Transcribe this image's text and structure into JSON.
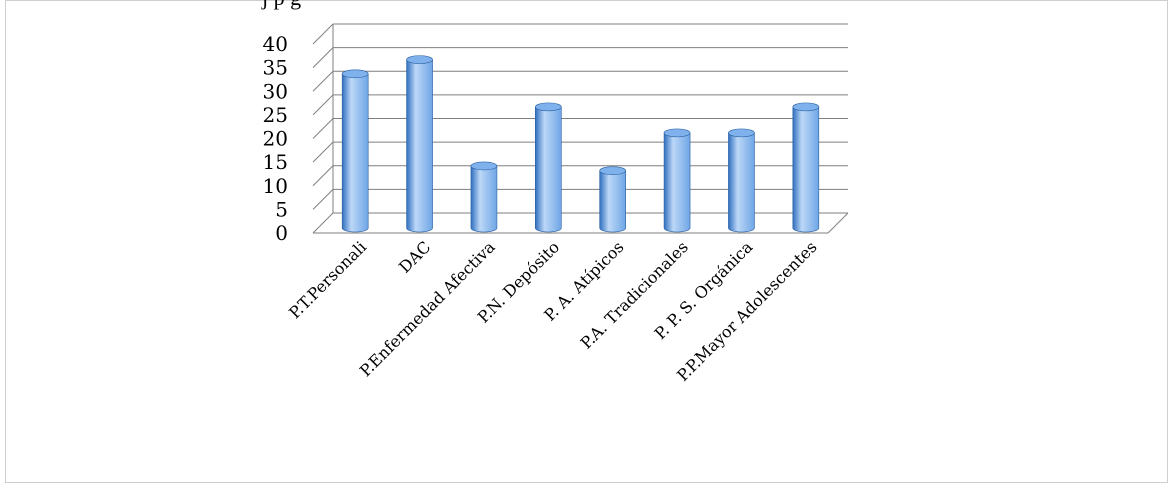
{
  "caption_fragment": "j                          p             g",
  "chart_data": {
    "type": "bar",
    "style": "3d-cylinder",
    "title": "",
    "xlabel": "",
    "ylabel": "",
    "ylim": [
      0,
      40
    ],
    "yticks": [
      0,
      5,
      10,
      15,
      20,
      25,
      30,
      35,
      40
    ],
    "grid": true,
    "legend": "none",
    "categories": [
      "P.T.Personali",
      "DAC",
      "P.Enfermedad Afectiva",
      "P.N. Depósito",
      "P. A. Atípicos",
      "P.A. Tradicionales",
      "P. P. S. Orgánica",
      "P.P.Mayor Adolescentes"
    ],
    "series": [
      {
        "values": [
          32,
          35,
          12.5,
          25,
          11.5,
          19.5,
          19.5,
          25
        ]
      }
    ],
    "colors": {
      "bar_light": "#bcd7f7",
      "bar_mid": "#6fa6e6",
      "bar_dark": "#2f6fbf",
      "grid": "#7f7f7f"
    }
  }
}
